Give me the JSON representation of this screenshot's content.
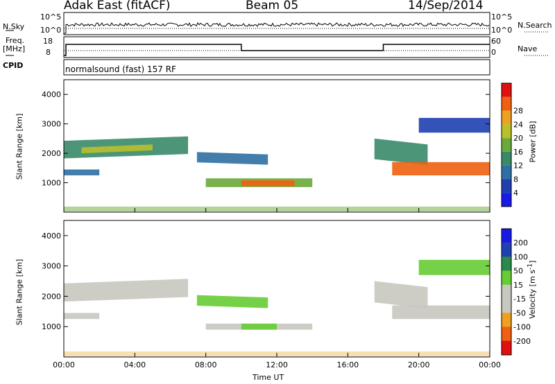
{
  "header": {
    "station": "Adak East (fitACF)",
    "beam": "Beam 05",
    "date": "14/Sep/2014"
  },
  "strip_labels": {
    "nsky": "N.Sky",
    "nsky_ticks": [
      "10^5",
      "10^0"
    ],
    "nsearch": "N.Search",
    "nsearch_ticks": [
      "10^5",
      "10^0"
    ],
    "freq_line1": "Freq.",
    "freq_line2": "[MHz]",
    "freq_ticks": [
      "18",
      "8"
    ],
    "nave": "Nave",
    "nave_ticks": [
      "60",
      "0"
    ],
    "cpid": "CPID",
    "cpid_text": "normalsound (fast) 157 RF"
  },
  "x_axis": {
    "label": "Time UT",
    "ticks": [
      "00:00",
      "04:00",
      "08:00",
      "12:00",
      "16:00",
      "20:00",
      "00:00"
    ]
  },
  "colors": {
    "power_scale": [
      "#1a1ae6",
      "#1f3fb0",
      "#2f6fa3",
      "#3a8a6a",
      "#6aaa3a",
      "#b8c02a",
      "#f0a020",
      "#f06010",
      "#e01010"
    ],
    "velocity_scale": [
      "#1a1ae6",
      "#2040b0",
      "#2a8a4a",
      "#66cc33",
      "#c8c8c0",
      "#c8c8c0",
      "#f0a020",
      "#f06010",
      "#e01010"
    ]
  },
  "chart_data": [
    {
      "type": "heatmap",
      "title": "",
      "xlabel": "Time UT",
      "ylabel": "Slant Range [km]",
      "xlim": [
        0,
        24
      ],
      "ylim": [
        0,
        4500
      ],
      "yticks": [
        "1000",
        "2000",
        "3000",
        "4000"
      ],
      "colorbar_label": "Power [dB]",
      "colorbar_ticks": [
        "4",
        "8",
        "12",
        "16",
        "20",
        "24",
        "28"
      ],
      "colorbar_range": [
        0,
        32
      ],
      "patches": [
        {
          "t0": 0.0,
          "t1": 7.0,
          "r0": 1900,
          "r1": 2500,
          "r_slope": 150,
          "level": 12
        },
        {
          "t0": 0.0,
          "t1": 2.0,
          "r0": 1250,
          "r1": 1450,
          "r_slope": 0,
          "level": 8
        },
        {
          "t0": 1.0,
          "t1": 5.0,
          "r0": 2050,
          "r1": 2250,
          "r_slope": 100,
          "level": 20
        },
        {
          "t0": 7.5,
          "t1": 11.5,
          "r0": 1650,
          "r1": 2000,
          "r_slope": -80,
          "level": 10
        },
        {
          "t0": 8.0,
          "t1": 14.0,
          "r0": 850,
          "r1": 1150,
          "r_slope": 0,
          "level": 16
        },
        {
          "t0": 10.0,
          "t1": 13.0,
          "r0": 880,
          "r1": 1080,
          "r_slope": 0,
          "level": 26
        },
        {
          "t0": 17.5,
          "t1": 20.5,
          "r0": 1700,
          "r1": 2400,
          "r_slope": -200,
          "level": 14
        },
        {
          "t0": 18.5,
          "t1": 24.0,
          "r0": 1250,
          "r1": 1700,
          "r_slope": 0,
          "level": 28
        },
        {
          "t0": 20.0,
          "t1": 24.0,
          "r0": 2700,
          "r1": 3200,
          "r_slope": 0,
          "level": 6
        }
      ]
    },
    {
      "type": "heatmap",
      "title": "",
      "xlabel": "Time UT",
      "ylabel": "Slant Range [km]",
      "xlim": [
        0,
        24
      ],
      "ylim": [
        0,
        4500
      ],
      "yticks": [
        "1000",
        "2000",
        "3000",
        "4000"
      ],
      "colorbar_label": "Velocity [m s^-1]",
      "colorbar_ticks": [
        "200",
        "100",
        "50",
        "15",
        "-15",
        "-50",
        "-100",
        "-200"
      ],
      "patches": [
        {
          "t0": 0.0,
          "t1": 7.0,
          "r0": 1900,
          "r1": 2500,
          "r_slope": 150,
          "velocity": 0
        },
        {
          "t0": 0.0,
          "t1": 2.0,
          "r0": 1250,
          "r1": 1450,
          "r_slope": 0,
          "velocity": 0
        },
        {
          "t0": 7.5,
          "t1": 11.5,
          "r0": 1650,
          "r1": 2000,
          "r_slope": -80,
          "velocity": 40
        },
        {
          "t0": 8.0,
          "t1": 14.0,
          "r0": 900,
          "r1": 1100,
          "r_slope": 0,
          "velocity": 0
        },
        {
          "t0": 10.0,
          "t1": 12.0,
          "r0": 900,
          "r1": 1100,
          "r_slope": 0,
          "velocity": 40
        },
        {
          "t0": 17.5,
          "t1": 20.5,
          "r0": 1700,
          "r1": 2400,
          "r_slope": -200,
          "velocity": 0
        },
        {
          "t0": 18.5,
          "t1": 24.0,
          "r0": 1250,
          "r1": 1700,
          "r_slope": 0,
          "velocity": 0
        },
        {
          "t0": 20.0,
          "t1": 24.0,
          "r0": 2700,
          "r1": 3200,
          "r_slope": 0,
          "velocity": 60
        }
      ]
    }
  ]
}
